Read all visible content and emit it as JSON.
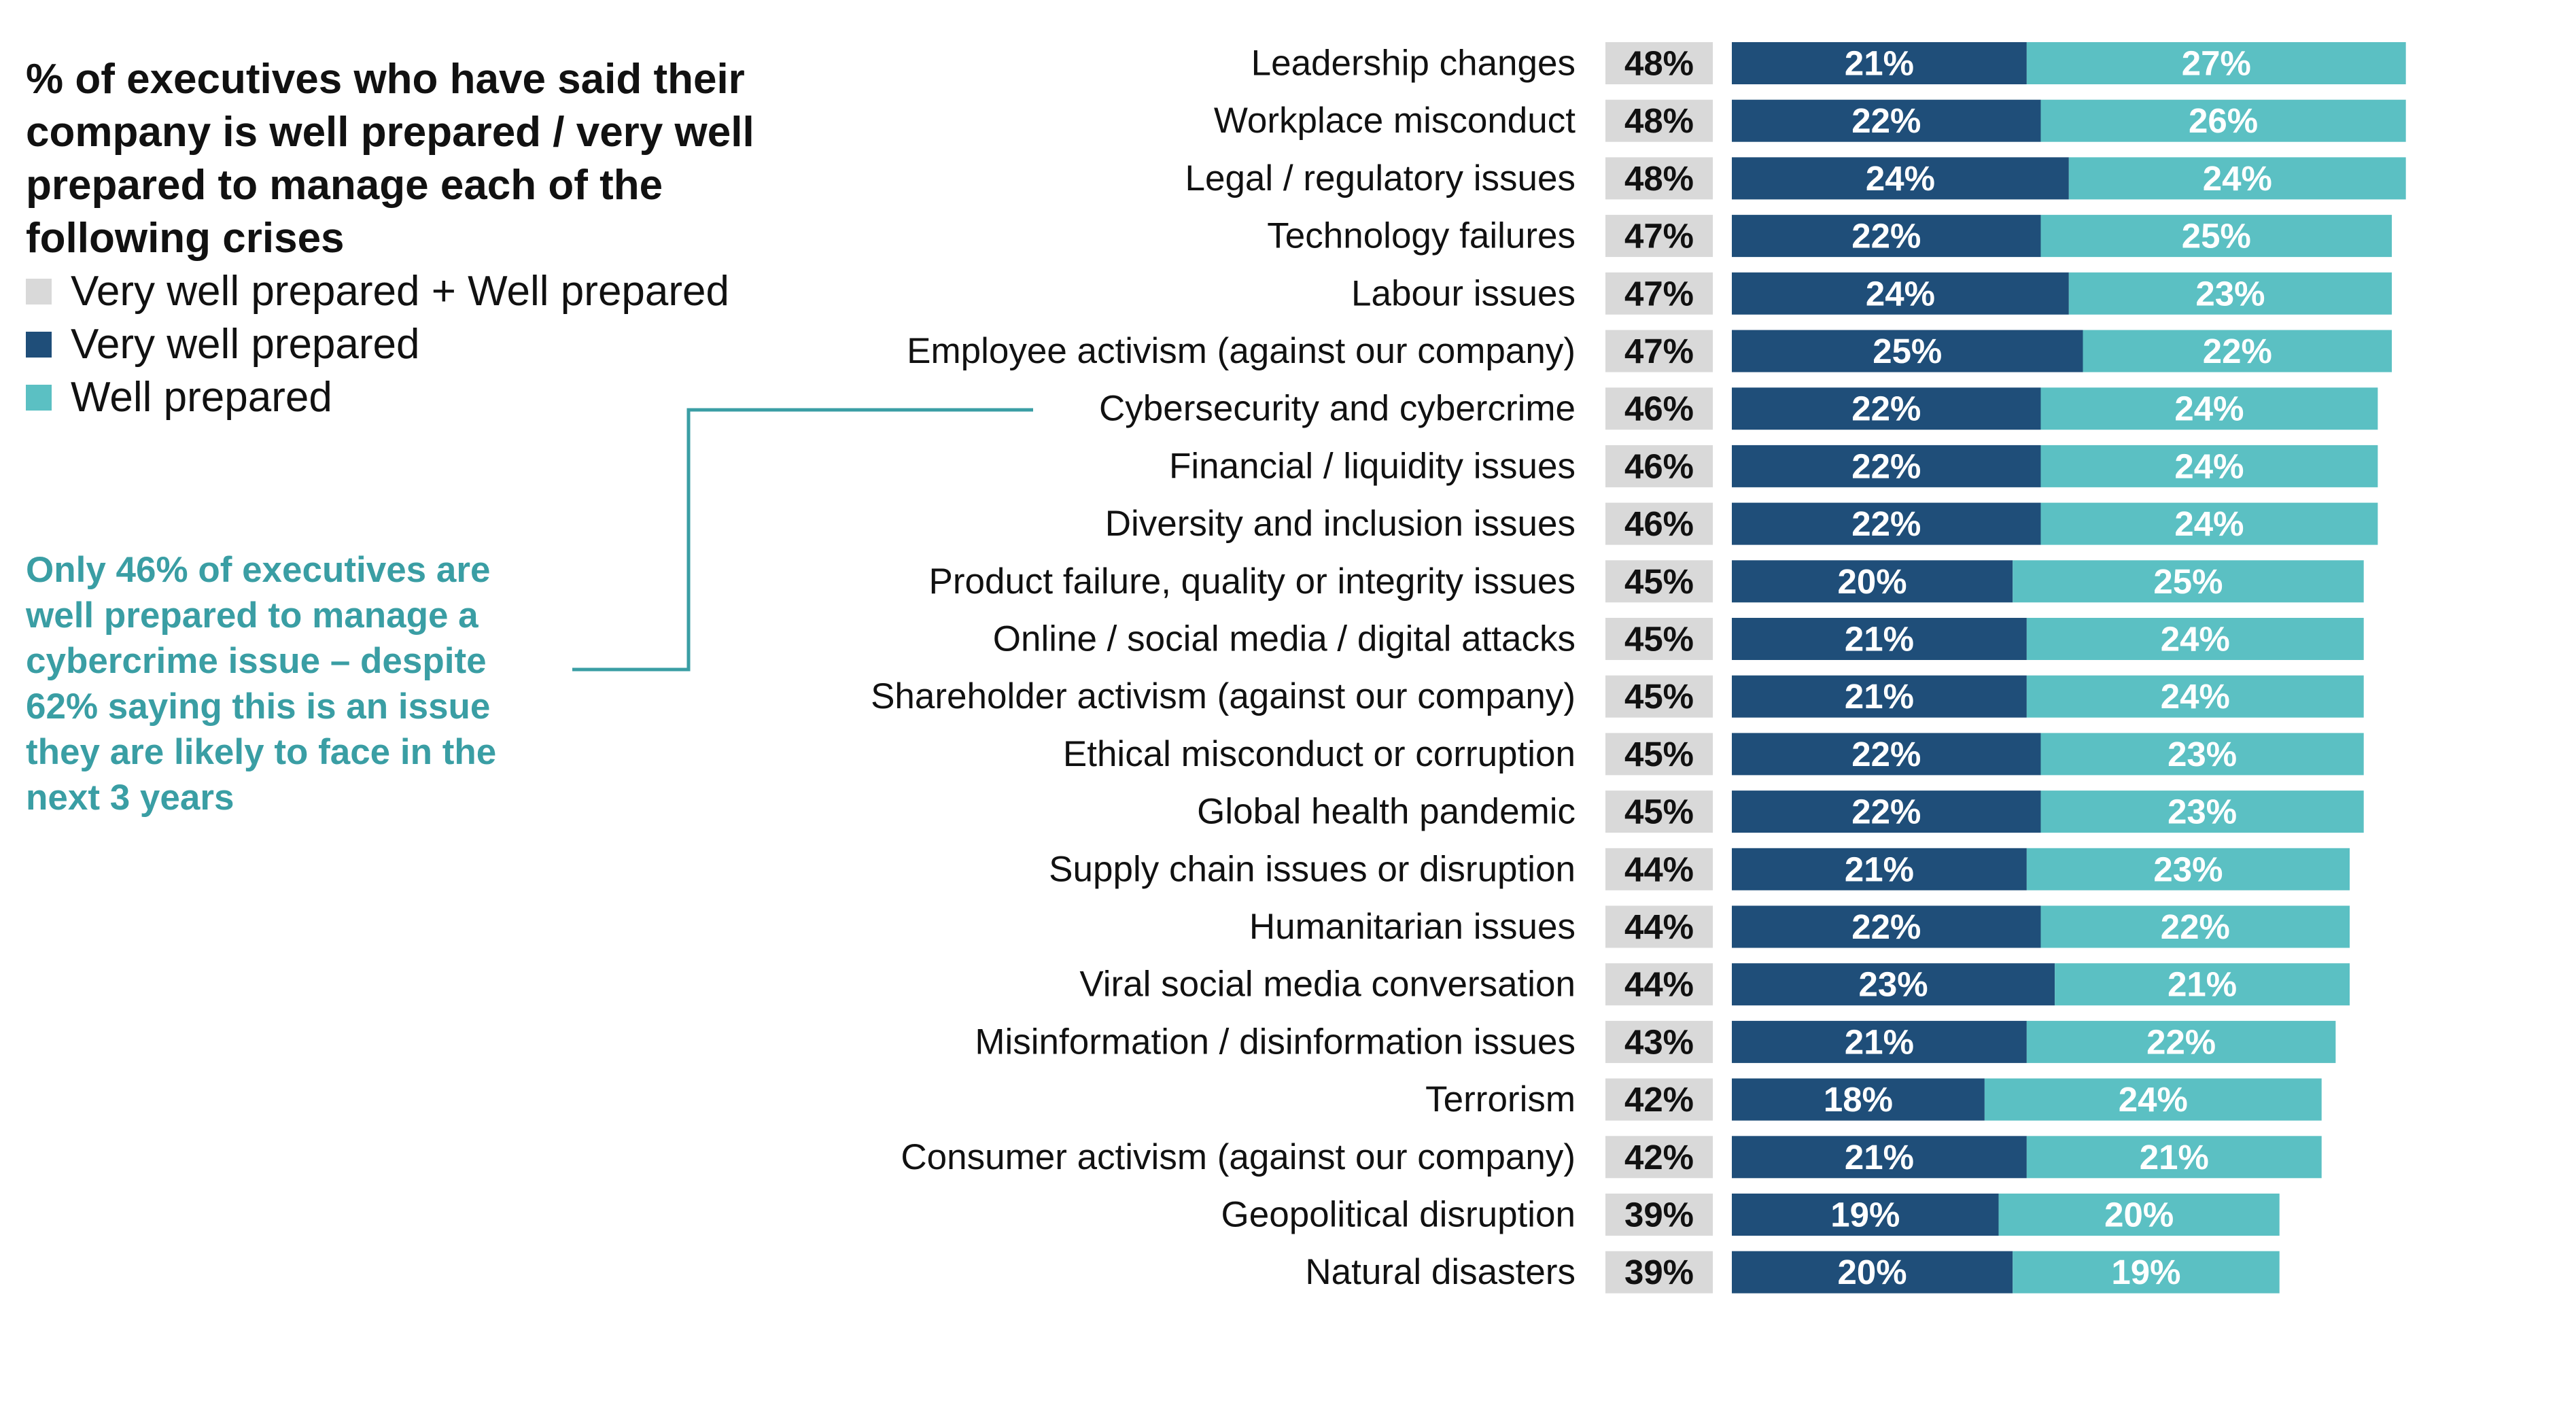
{
  "title": "% of executives who have said their company is well prepared / very well prepared to manage each of the following crises",
  "legend": {
    "total": "Very well prepared + Well prepared",
    "very_well": "Very well prepared",
    "well": "Well prepared"
  },
  "annotation": "Only 46% of executives are well prepared to manage a cybercrime issue – despite 62% saying this is an issue they are likely to face in the next 3 years",
  "colors": {
    "total": "#d9d9d9",
    "very_well": "#1f4e79",
    "well": "#5bc0c3",
    "annotation": "#3a9ea4"
  },
  "chart_data": {
    "type": "bar",
    "orientation": "horizontal",
    "stacked": true,
    "unit": "%",
    "categories": [
      "Leadership changes",
      "Workplace misconduct",
      "Legal / regulatory issues",
      "Technology failures",
      "Labour issues",
      "Employee activism (against our company)",
      "Cybersecurity and cybercrime",
      "Financial / liquidity issues",
      "Diversity and inclusion issues",
      "Product failure, quality or integrity issues",
      "Online / social media / digital attacks",
      "Shareholder activism (against our company)",
      "Ethical misconduct or corruption",
      "Global health pandemic",
      "Supply chain issues or disruption",
      "Humanitarian issues",
      "Viral social media conversation",
      "Misinformation / disinformation issues",
      "Terrorism",
      "Consumer activism (against our company)",
      "Geopolitical disruption",
      "Natural disasters"
    ],
    "totals": [
      48,
      48,
      48,
      47,
      47,
      47,
      46,
      46,
      46,
      45,
      45,
      45,
      45,
      45,
      44,
      44,
      44,
      43,
      42,
      42,
      39,
      39
    ],
    "series": [
      {
        "name": "Very well prepared",
        "values": [
          21,
          22,
          24,
          22,
          24,
          25,
          22,
          22,
          22,
          20,
          21,
          21,
          22,
          22,
          21,
          22,
          23,
          21,
          18,
          21,
          19,
          20
        ]
      },
      {
        "name": "Well prepared",
        "values": [
          27,
          26,
          24,
          25,
          23,
          22,
          24,
          24,
          24,
          25,
          24,
          24,
          23,
          23,
          23,
          22,
          21,
          22,
          24,
          21,
          20,
          19
        ]
      }
    ],
    "highlight_category": "Cybersecurity and cybercrime"
  }
}
